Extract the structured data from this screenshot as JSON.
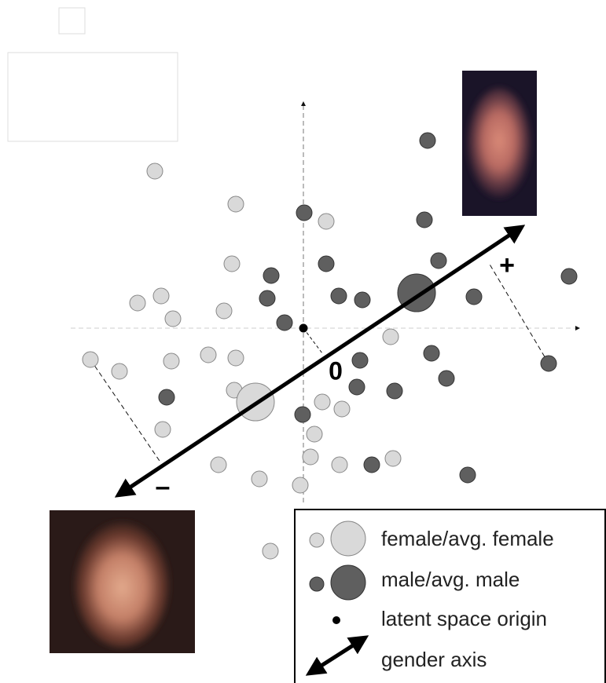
{
  "labels": {
    "plus": "+",
    "zero": "0",
    "minus": "–"
  },
  "legend": {
    "female": "female/avg. female",
    "male": "male/avg. male",
    "origin": "latent space origin",
    "axis": "gender axis"
  }
}
